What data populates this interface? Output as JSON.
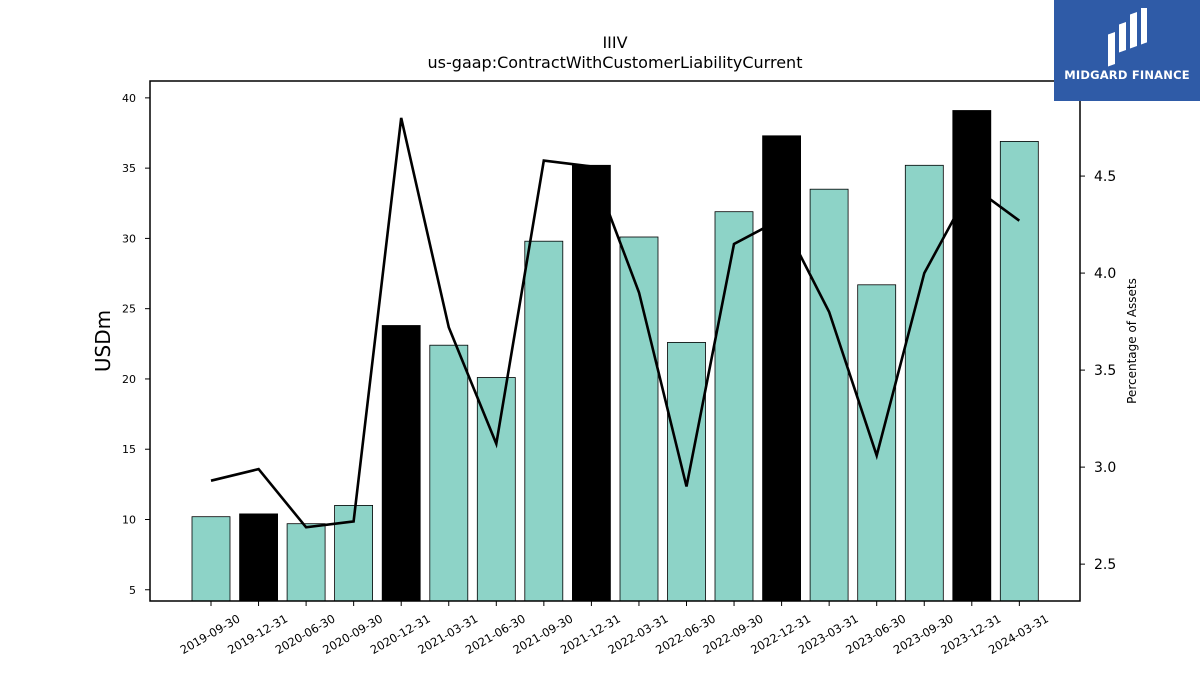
{
  "chart_data": {
    "type": "bar",
    "title": "IIIV",
    "subtitle": "us-gaap:ContractWithCustomerLiabilityCurrent",
    "ylabel": "USDm",
    "y2label": "Percentage of Assets",
    "categories": [
      "2019-09-30",
      "2019-12-31",
      "2020-06-30",
      "2020-09-30",
      "2020-12-31",
      "2021-03-31",
      "2021-06-30",
      "2021-09-30",
      "2021-12-31",
      "2022-03-31",
      "2022-06-30",
      "2022-09-30",
      "2022-12-31",
      "2023-03-31",
      "2023-06-30",
      "2023-09-30",
      "2023-12-31",
      "2024-03-31"
    ],
    "series": [
      {
        "type": "bar",
        "values": [
          10.2,
          10.4,
          9.7,
          11.0,
          23.8,
          22.4,
          20.1,
          29.8,
          35.2,
          30.1,
          22.6,
          31.9,
          37.3,
          33.5,
          26.7,
          35.2,
          39.1,
          36.9
        ],
        "highlight": [
          false,
          true,
          false,
          false,
          true,
          false,
          false,
          false,
          true,
          false,
          false,
          false,
          true,
          false,
          false,
          false,
          true,
          false
        ],
        "color": "#8dd3c7",
        "highlight_color": "#000000"
      },
      {
        "type": "line",
        "axis": "right",
        "values": [
          2.93,
          2.99,
          2.69,
          2.72,
          4.8,
          3.72,
          3.12,
          4.58,
          4.55,
          3.9,
          2.9,
          4.15,
          4.28,
          3.8,
          3.06,
          4.0,
          4.45,
          4.27
        ],
        "color": "#000000"
      }
    ],
    "ylim": [
      4.2,
      41.2
    ],
    "yticks": [
      5,
      10,
      15,
      20,
      25,
      30,
      35,
      40
    ],
    "y2lim": [
      2.31,
      4.99
    ],
    "y2ticks": [
      "2.5",
      "3.0",
      "3.5",
      "4.0",
      "4.5"
    ],
    "grid": false,
    "legend": "none"
  },
  "logo": {
    "text": "MIDGARD FINANCE",
    "background": "#2f5ba7"
  }
}
